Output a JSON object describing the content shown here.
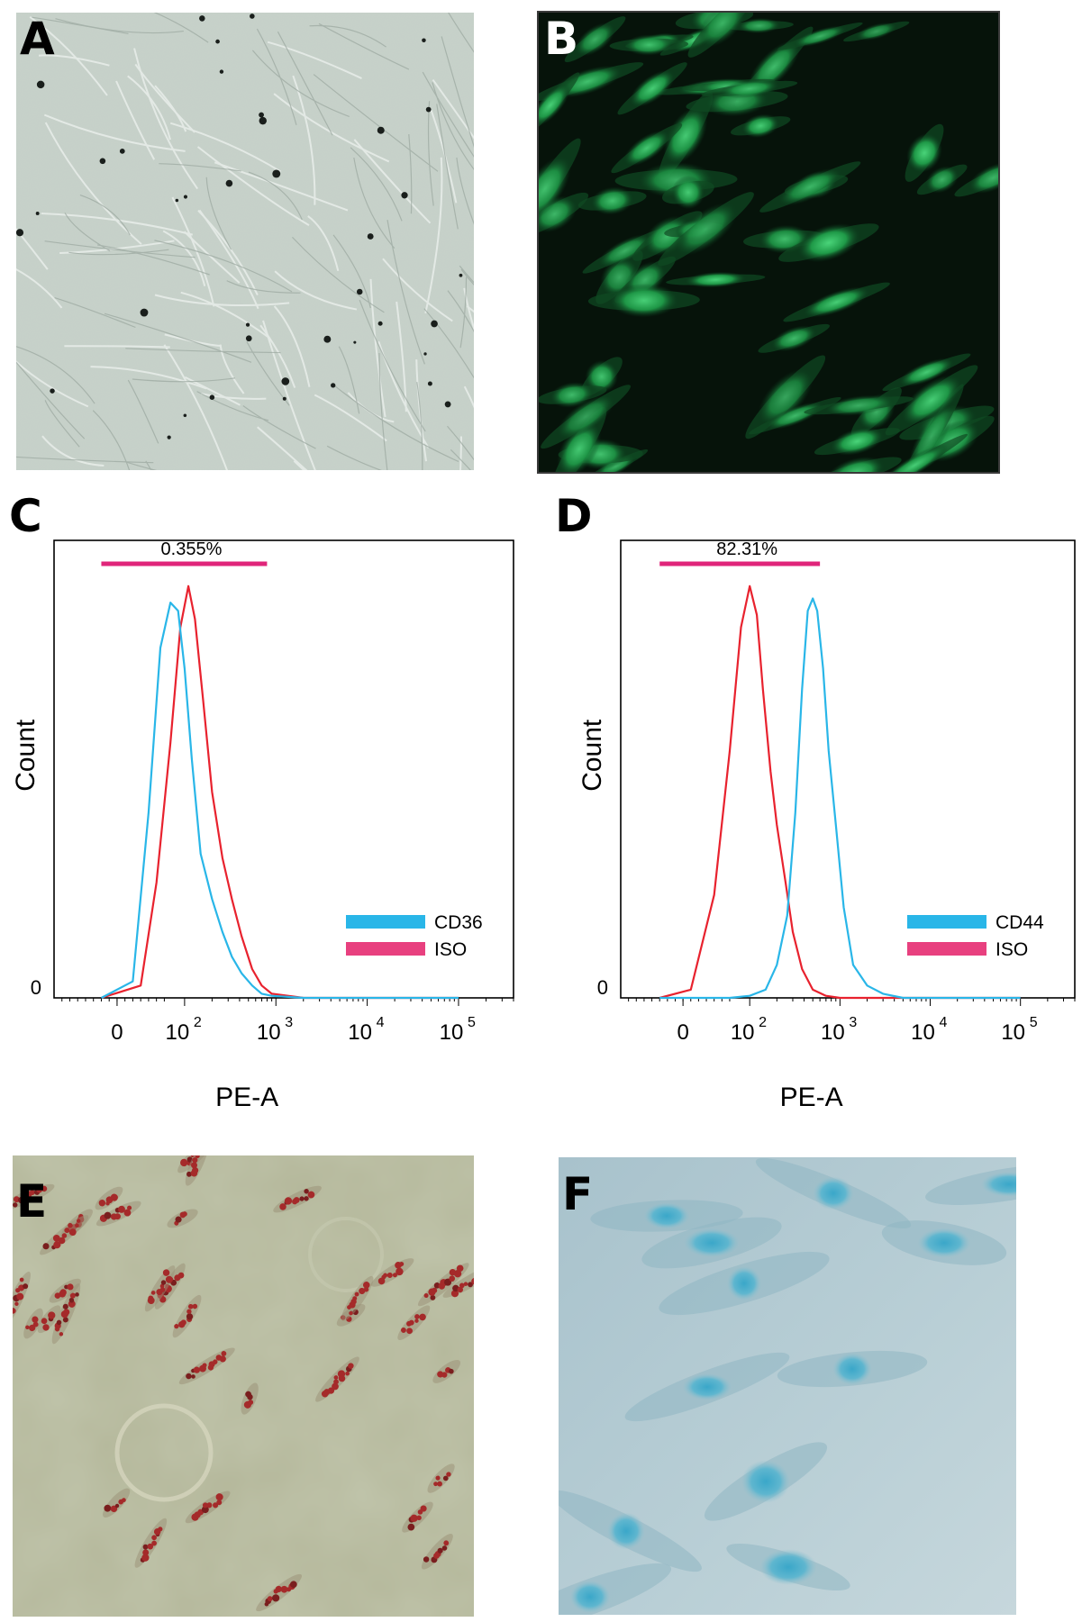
{
  "panels": {
    "A": {
      "letter": "A"
    },
    "B": {
      "letter": "B"
    },
    "C": {
      "letter": "C"
    },
    "D": {
      "letter": "D"
    },
    "E": {
      "letter": "E"
    },
    "F": {
      "letter": "F"
    }
  },
  "colors": {
    "sample_series": "#29b6e8",
    "iso_series": "#e8222e",
    "gate_bar": "#e0257a",
    "legend_iso": "#e8407f"
  },
  "chart_data": [
    {
      "type": "line",
      "panel": "C",
      "xlabel": "PE-A",
      "ylabel": "Count",
      "x_scale": "biexponential (log)",
      "x_ticks": [
        {
          "value": 0,
          "label": "0",
          "exp": ""
        },
        {
          "value": 100,
          "label": "10",
          "exp": "2"
        },
        {
          "value": 1000,
          "label": "10",
          "exp": "3"
        },
        {
          "value": 10000,
          "label": "10",
          "exp": "4"
        },
        {
          "value": 100000,
          "label": "10",
          "exp": "5"
        }
      ],
      "y_ticks": [
        {
          "value": 0,
          "label": "0"
        }
      ],
      "gate": {
        "label": "0.355%",
        "from": -20,
        "to": 800
      },
      "legend_position": "bottom-right",
      "series": [
        {
          "name": "CD36",
          "color": "#29b6e8",
          "x": [
            -20,
            20,
            40,
            55,
            70,
            85,
            100,
            120,
            150,
            200,
            260,
            330,
            420,
            550,
            700,
            900,
            2000,
            100000
          ],
          "y": [
            0,
            0.04,
            0.45,
            0.85,
            0.96,
            0.94,
            0.8,
            0.58,
            0.35,
            0.24,
            0.16,
            0.1,
            0.06,
            0.03,
            0.01,
            0.005,
            0,
            0
          ]
        },
        {
          "name": "ISO",
          "color": "#e8222e",
          "x": [
            -20,
            30,
            50,
            70,
            90,
            110,
            130,
            160,
            200,
            260,
            330,
            420,
            550,
            700,
            900,
            2000,
            100000
          ],
          "y": [
            0,
            0.03,
            0.28,
            0.62,
            0.9,
            1.0,
            0.92,
            0.72,
            0.5,
            0.34,
            0.24,
            0.15,
            0.07,
            0.03,
            0.01,
            0,
            0
          ]
        }
      ]
    },
    {
      "type": "line",
      "panel": "D",
      "xlabel": "PE-A",
      "ylabel": "Count",
      "x_scale": "biexponential (log)",
      "x_ticks": [
        {
          "value": 0,
          "label": "0",
          "exp": ""
        },
        {
          "value": 100,
          "label": "10",
          "exp": "2"
        },
        {
          "value": 1000,
          "label": "10",
          "exp": "3"
        },
        {
          "value": 10000,
          "label": "10",
          "exp": "4"
        },
        {
          "value": 100000,
          "label": "10",
          "exp": "5"
        }
      ],
      "y_ticks": [
        {
          "value": 0,
          "label": "0"
        }
      ],
      "gate": {
        "label": "82.31%",
        "from": -30,
        "to": 600
      },
      "legend_position": "bottom-right",
      "series": [
        {
          "name": "CD44",
          "color": "#29b6e8",
          "x": [
            -30,
            60,
            100,
            150,
            200,
            260,
            320,
            380,
            440,
            500,
            560,
            650,
            750,
            900,
            1100,
            1400,
            2000,
            3000,
            5000,
            100000
          ],
          "y": [
            0,
            0,
            0.005,
            0.02,
            0.08,
            0.2,
            0.45,
            0.75,
            0.94,
            0.97,
            0.94,
            0.8,
            0.6,
            0.42,
            0.22,
            0.08,
            0.03,
            0.01,
            0,
            0
          ]
        },
        {
          "name": "ISO",
          "color": "#e8222e",
          "x": [
            -30,
            10,
            40,
            60,
            80,
            100,
            120,
            140,
            170,
            200,
            250,
            300,
            380,
            500,
            700,
            1000,
            100000
          ],
          "y": [
            0,
            0.02,
            0.25,
            0.6,
            0.9,
            1.0,
            0.93,
            0.75,
            0.55,
            0.42,
            0.28,
            0.16,
            0.07,
            0.02,
            0.005,
            0,
            0
          ]
        }
      ]
    }
  ]
}
